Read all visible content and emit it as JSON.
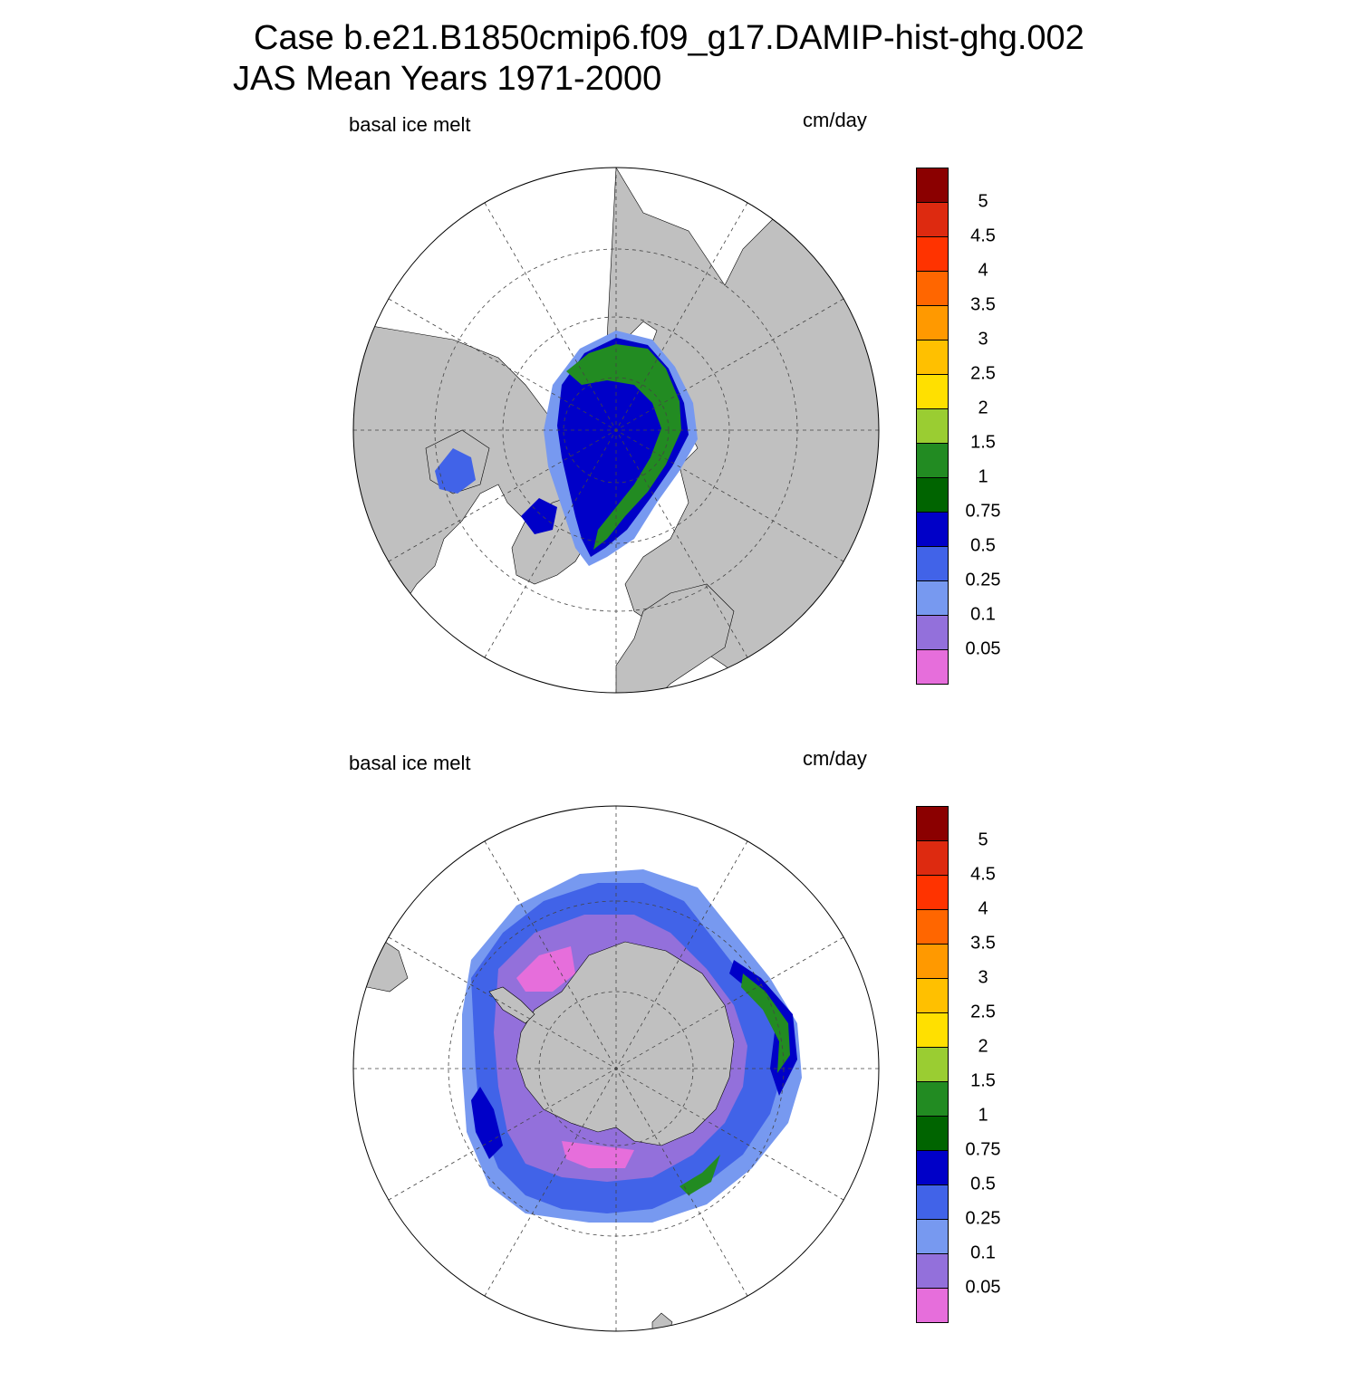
{
  "title": {
    "line1": "Case b.e21.B1850cmip6.f09_g17.DAMIP-hist-ghg.002",
    "line2": "JAS Mean   Years 1971-2000"
  },
  "colors": {
    "land": "#c0c0c0",
    "ocean": "#ffffff",
    "levels": [
      "#e66edb",
      "#9370db",
      "#7799f0",
      "#4163e8",
      "#0000c8",
      "#006400",
      "#228b22",
      "#9acd32",
      "#ffe000",
      "#ffc000",
      "#ff9900",
      "#ff6600",
      "#ff3300",
      "#dd2a10",
      "#8b0000"
    ]
  },
  "colorbar": {
    "labels": [
      "5",
      "4.5",
      "4",
      "3.5",
      "3",
      "2.5",
      "2",
      "1.5",
      "1",
      "0.75",
      "0.5",
      "0.25",
      "0.1",
      "0.05"
    ]
  },
  "panels": [
    {
      "id": "north",
      "variable": "basal ice melt",
      "units": "cm/day",
      "hemisphere": "Northern"
    },
    {
      "id": "south",
      "variable": "basal ice melt",
      "units": "cm/day",
      "hemisphere": "Southern"
    }
  ]
}
